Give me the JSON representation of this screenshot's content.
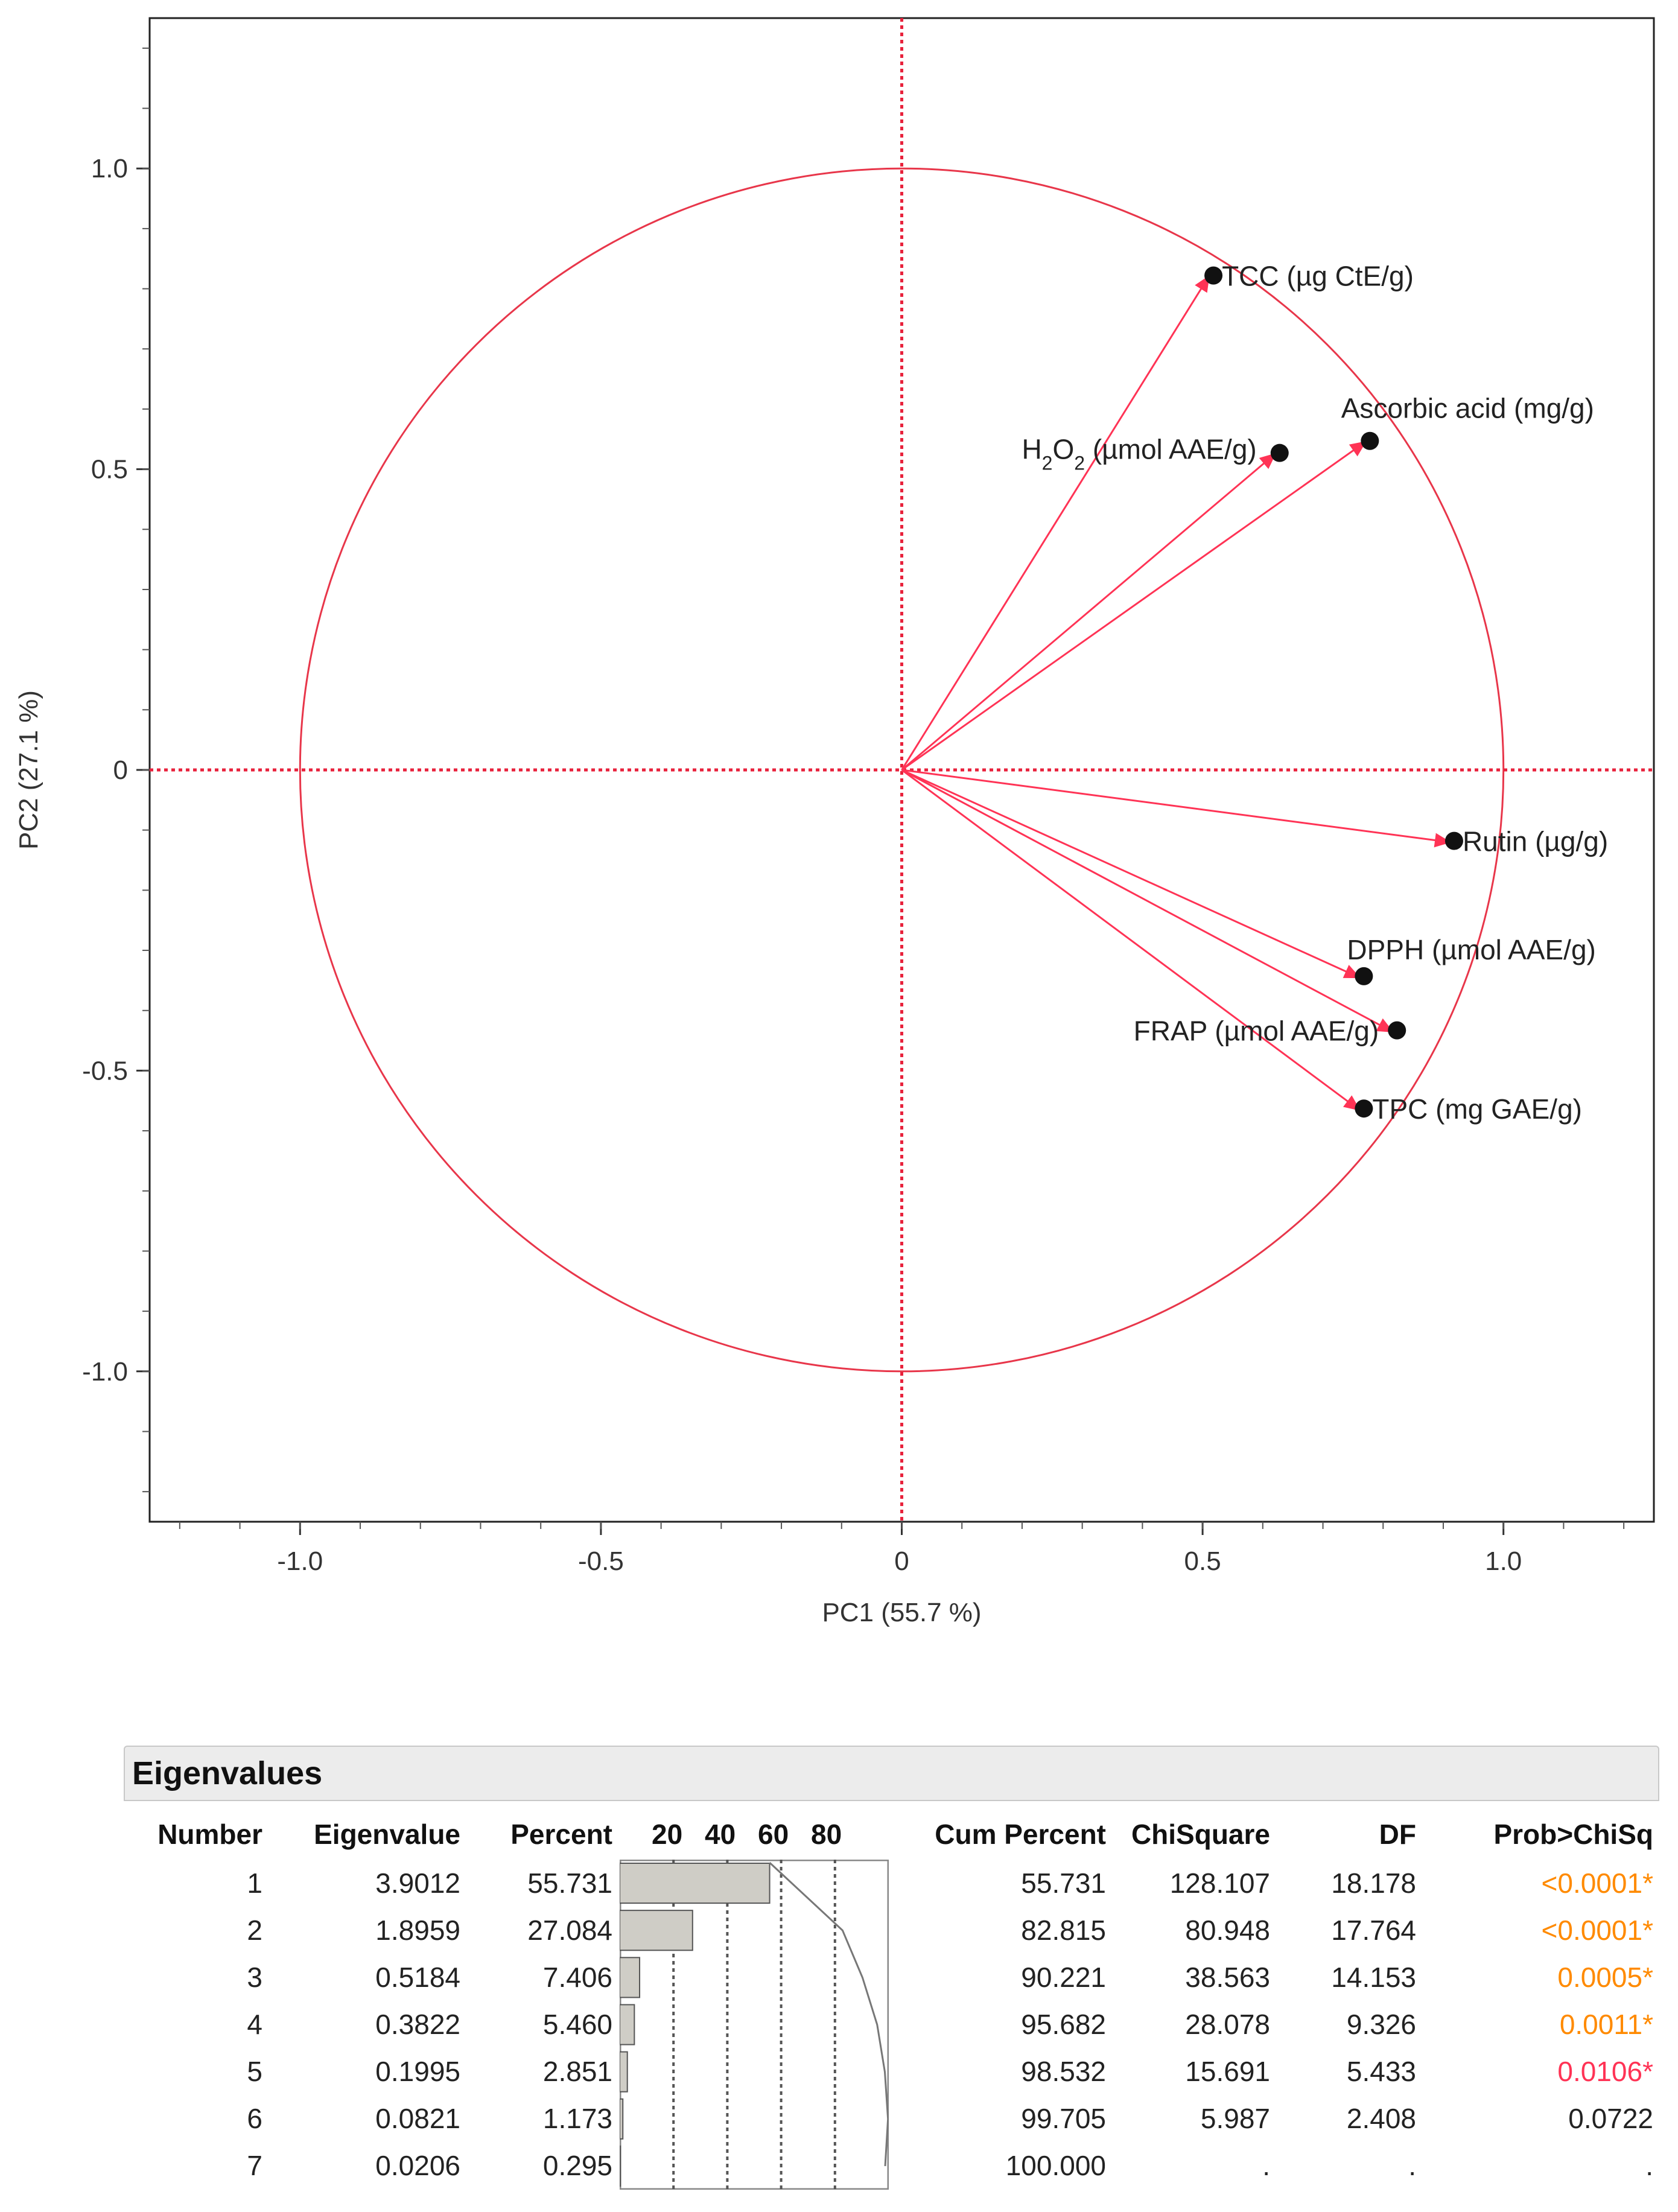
{
  "chart_data": {
    "type": "scatter",
    "subtype": "pca-loading-plot",
    "xlabel": "PC1  (55.7 %)",
    "ylabel": "PC2  (27.1 %)",
    "xlim": [
      -1.25,
      1.25
    ],
    "ylim": [
      -1.25,
      1.25
    ],
    "xticks": [
      -1.0,
      -0.5,
      0,
      0.5,
      1.0
    ],
    "xtick_labels": [
      "-1.0",
      "-0.5",
      "0",
      "0.5",
      "1.0"
    ],
    "yticks": [
      -1.0,
      -0.5,
      0,
      0.5,
      1.0
    ],
    "ytick_labels": [
      "-1.0",
      "-0.5",
      "0",
      "0.5",
      "1.0"
    ],
    "unit_circle": true,
    "grid": false,
    "series": [
      {
        "name": "TCC (µg CtE/g)",
        "x": 0.51,
        "y": 0.82
      },
      {
        "name": "H2O2 (µmol AAE/g)",
        "x": 0.62,
        "y": 0.525
      },
      {
        "name": "Ascorbic acid (mg/g)",
        "x": 0.77,
        "y": 0.545
      },
      {
        "name": "Rutin (µg/g)",
        "x": 0.91,
        "y": -0.12
      },
      {
        "name": "DPPH (µmol AAE/g)",
        "x": 0.76,
        "y": -0.345
      },
      {
        "name": "FRAP (µmol AAE/g)",
        "x": 0.815,
        "y": -0.435
      },
      {
        "name": "TPC (mg GAE/g)",
        "x": 0.76,
        "y": -0.565
      }
    ],
    "label_parts": {
      "h2o2_prefix": "H",
      "h2o2_sub1": "2",
      "h2o2_mid": "O",
      "h2o2_sub2": "2",
      "h2o2_suffix": " (µmol AAE/g)"
    }
  },
  "colors": {
    "arrow": "#ff3355",
    "circle": "#e8364a",
    "point": "#111111",
    "axis_dotted": "#e8223c",
    "bar_fill": "#cfcdc6",
    "prob_orange": "#ff8a00",
    "prob_red": "#ff3355"
  },
  "eigen_table": {
    "title": "Eigenvalues",
    "headers": {
      "number": "Number",
      "eigenvalue": "Eigenvalue",
      "percent": "Percent",
      "bar_ticks": [
        "20",
        "40",
        "60",
        "80"
      ],
      "cum_percent": "Cum Percent",
      "chisquare": "ChiSquare",
      "df": "DF",
      "prob": "Prob>ChiSq"
    },
    "rows": [
      {
        "number": "1",
        "eigenvalue": "3.9012",
        "percent": "55.731",
        "cum": "55.731",
        "chisq": "128.107",
        "df": "18.178",
        "prob": "<0.0001*",
        "prob_color": "orange"
      },
      {
        "number": "2",
        "eigenvalue": "1.8959",
        "percent": "27.084",
        "cum": "82.815",
        "chisq": "80.948",
        "df": "17.764",
        "prob": "<0.0001*",
        "prob_color": "orange"
      },
      {
        "number": "3",
        "eigenvalue": "0.5184",
        "percent": "7.406",
        "cum": "90.221",
        "chisq": "38.563",
        "df": "14.153",
        "prob": "0.0005*",
        "prob_color": "orange"
      },
      {
        "number": "4",
        "eigenvalue": "0.3822",
        "percent": "5.460",
        "cum": "95.682",
        "chisq": "28.078",
        "df": "9.326",
        "prob": "0.0011*",
        "prob_color": "orange"
      },
      {
        "number": "5",
        "eigenvalue": "0.1995",
        "percent": "2.851",
        "cum": "98.532",
        "chisq": "15.691",
        "df": "5.433",
        "prob": "0.0106*",
        "prob_color": "red"
      },
      {
        "number": "6",
        "eigenvalue": "0.0821",
        "percent": "1.173",
        "cum": "99.705",
        "chisq": "5.987",
        "df": "2.408",
        "prob": "0.0722",
        "prob_color": "black"
      },
      {
        "number": "7",
        "eigenvalue": "0.0206",
        "percent": "0.295",
        "cum": "100.000",
        "chisq": ".",
        "df": ".",
        "prob": ".",
        "prob_color": "black"
      }
    ]
  }
}
